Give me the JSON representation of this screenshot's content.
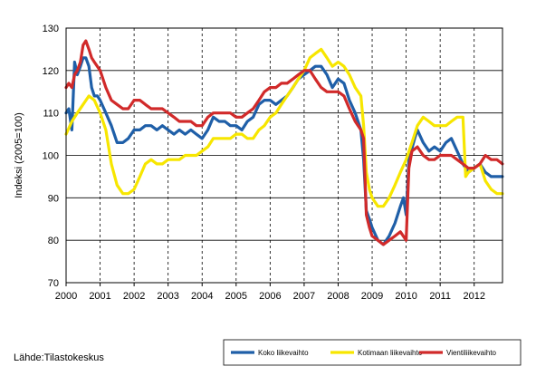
{
  "source": "Lähde:Tilastokeskus",
  "chart_data": {
    "type": "line",
    "ylabel": "Indeksi (2005=100)",
    "xlabel": "",
    "ylim": [
      70,
      130
    ],
    "xlim": [
      2000.0,
      2012.833
    ],
    "yticks": [
      70,
      80,
      90,
      100,
      110,
      120,
      130
    ],
    "xticks": [
      "2000",
      "2001",
      "2002",
      "2003",
      "2004",
      "2005",
      "2006",
      "2007",
      "2008",
      "2009",
      "2010",
      "2011",
      "2012"
    ],
    "grid": {
      "horizontal": "solid",
      "vertical": "dashed"
    },
    "legend_position": "bottom-right",
    "series": [
      {
        "name": "Koko liikevaihto",
        "color": "#1f5fa8",
        "points": [
          [
            2000.0,
            110
          ],
          [
            2000.08,
            111
          ],
          [
            2000.17,
            106
          ],
          [
            2000.25,
            122
          ],
          [
            2000.33,
            119
          ],
          [
            2000.42,
            121
          ],
          [
            2000.5,
            123
          ],
          [
            2000.58,
            123
          ],
          [
            2000.67,
            121
          ],
          [
            2000.75,
            116
          ],
          [
            2000.83,
            114
          ],
          [
            2000.92,
            114
          ],
          [
            2001.0,
            113
          ],
          [
            2001.17,
            110
          ],
          [
            2001.33,
            107
          ],
          [
            2001.5,
            103
          ],
          [
            2001.67,
            103
          ],
          [
            2001.83,
            104
          ],
          [
            2002.0,
            106
          ],
          [
            2002.17,
            106
          ],
          [
            2002.33,
            107
          ],
          [
            2002.5,
            107
          ],
          [
            2002.67,
            106
          ],
          [
            2002.83,
            107
          ],
          [
            2003.0,
            106
          ],
          [
            2003.17,
            105
          ],
          [
            2003.33,
            106
          ],
          [
            2003.5,
            105
          ],
          [
            2003.67,
            106
          ],
          [
            2003.83,
            105
          ],
          [
            2004.0,
            104
          ],
          [
            2004.17,
            106
          ],
          [
            2004.33,
            109
          ],
          [
            2004.5,
            108
          ],
          [
            2004.67,
            108
          ],
          [
            2004.83,
            107
          ],
          [
            2005.0,
            107
          ],
          [
            2005.17,
            106
          ],
          [
            2005.33,
            108
          ],
          [
            2005.5,
            109
          ],
          [
            2005.67,
            112
          ],
          [
            2005.83,
            113
          ],
          [
            2006.0,
            113
          ],
          [
            2006.17,
            112
          ],
          [
            2006.33,
            113
          ],
          [
            2006.5,
            114
          ],
          [
            2006.67,
            116
          ],
          [
            2006.83,
            118
          ],
          [
            2007.0,
            119
          ],
          [
            2007.17,
            120
          ],
          [
            2007.33,
            121
          ],
          [
            2007.5,
            121
          ],
          [
            2007.67,
            119
          ],
          [
            2007.83,
            116
          ],
          [
            2008.0,
            118
          ],
          [
            2008.17,
            117
          ],
          [
            2008.33,
            113
          ],
          [
            2008.5,
            110
          ],
          [
            2008.67,
            106
          ],
          [
            2008.75,
            99
          ],
          [
            2008.83,
            87
          ],
          [
            2008.92,
            85
          ],
          [
            2009.0,
            83
          ],
          [
            2009.17,
            80
          ],
          [
            2009.33,
            79
          ],
          [
            2009.5,
            81
          ],
          [
            2009.67,
            84
          ],
          [
            2009.83,
            88
          ],
          [
            2009.92,
            90
          ],
          [
            2010.0,
            86
          ],
          [
            2010.08,
            99
          ],
          [
            2010.25,
            104
          ],
          [
            2010.33,
            106
          ],
          [
            2010.5,
            103
          ],
          [
            2010.67,
            101
          ],
          [
            2010.83,
            102
          ],
          [
            2011.0,
            101
          ],
          [
            2011.17,
            103
          ],
          [
            2011.33,
            104
          ],
          [
            2011.5,
            101
          ],
          [
            2011.67,
            98
          ],
          [
            2011.83,
            96
          ],
          [
            2012.0,
            97
          ],
          [
            2012.17,
            98
          ],
          [
            2012.33,
            96
          ],
          [
            2012.5,
            95
          ],
          [
            2012.67,
            95
          ],
          [
            2012.83,
            95
          ]
        ]
      },
      {
        "name": "Kotimaan liikevaihto",
        "color": "#f7e600",
        "points": [
          [
            2000.0,
            105
          ],
          [
            2000.17,
            108
          ],
          [
            2000.33,
            110
          ],
          [
            2000.5,
            112
          ],
          [
            2000.67,
            114
          ],
          [
            2000.83,
            113
          ],
          [
            2001.0,
            110
          ],
          [
            2001.17,
            106
          ],
          [
            2001.33,
            98
          ],
          [
            2001.5,
            93
          ],
          [
            2001.67,
            91
          ],
          [
            2001.83,
            91
          ],
          [
            2002.0,
            92
          ],
          [
            2002.17,
            95
          ],
          [
            2002.33,
            98
          ],
          [
            2002.5,
            99
          ],
          [
            2002.67,
            98
          ],
          [
            2002.83,
            98
          ],
          [
            2003.0,
            99
          ],
          [
            2003.17,
            99
          ],
          [
            2003.33,
            99
          ],
          [
            2003.5,
            100
          ],
          [
            2003.67,
            100
          ],
          [
            2003.83,
            100
          ],
          [
            2004.0,
            101
          ],
          [
            2004.17,
            102
          ],
          [
            2004.33,
            104
          ],
          [
            2004.5,
            104
          ],
          [
            2004.67,
            104
          ],
          [
            2004.83,
            104
          ],
          [
            2005.0,
            105
          ],
          [
            2005.17,
            105
          ],
          [
            2005.33,
            104
          ],
          [
            2005.5,
            104
          ],
          [
            2005.67,
            106
          ],
          [
            2005.83,
            107
          ],
          [
            2006.0,
            109
          ],
          [
            2006.17,
            110
          ],
          [
            2006.33,
            112
          ],
          [
            2006.5,
            114
          ],
          [
            2006.67,
            116
          ],
          [
            2006.83,
            118
          ],
          [
            2007.0,
            120
          ],
          [
            2007.17,
            123
          ],
          [
            2007.33,
            124
          ],
          [
            2007.5,
            125
          ],
          [
            2007.67,
            123
          ],
          [
            2007.83,
            121
          ],
          [
            2008.0,
            122
          ],
          [
            2008.17,
            121
          ],
          [
            2008.33,
            119
          ],
          [
            2008.5,
            116
          ],
          [
            2008.67,
            114
          ],
          [
            2008.75,
            107
          ],
          [
            2008.83,
            96
          ],
          [
            2008.92,
            92
          ],
          [
            2009.0,
            90
          ],
          [
            2009.17,
            88
          ],
          [
            2009.33,
            88
          ],
          [
            2009.5,
            90
          ],
          [
            2009.67,
            93
          ],
          [
            2009.83,
            96
          ],
          [
            2010.0,
            99
          ],
          [
            2010.17,
            103
          ],
          [
            2010.33,
            107
          ],
          [
            2010.5,
            109
          ],
          [
            2010.67,
            108
          ],
          [
            2010.83,
            107
          ],
          [
            2011.0,
            107
          ],
          [
            2011.17,
            107
          ],
          [
            2011.33,
            108
          ],
          [
            2011.5,
            109
          ],
          [
            2011.67,
            109
          ],
          [
            2011.75,
            95
          ],
          [
            2011.83,
            96
          ],
          [
            2012.0,
            97
          ],
          [
            2012.17,
            98
          ],
          [
            2012.33,
            94
          ],
          [
            2012.5,
            92
          ],
          [
            2012.67,
            91
          ],
          [
            2012.83,
            91
          ]
        ]
      },
      {
        "name": "Vientiliikevaihto",
        "color": "#d12a2a",
        "points": [
          [
            2000.0,
            116
          ],
          [
            2000.08,
            117
          ],
          [
            2000.17,
            116
          ],
          [
            2000.25,
            119
          ],
          [
            2000.33,
            120
          ],
          [
            2000.42,
            122
          ],
          [
            2000.5,
            126
          ],
          [
            2000.58,
            127
          ],
          [
            2000.67,
            125
          ],
          [
            2000.75,
            123
          ],
          [
            2000.83,
            122
          ],
          [
            2001.0,
            120
          ],
          [
            2001.17,
            116
          ],
          [
            2001.33,
            113
          ],
          [
            2001.5,
            112
          ],
          [
            2001.67,
            111
          ],
          [
            2001.83,
            111
          ],
          [
            2002.0,
            113
          ],
          [
            2002.17,
            113
          ],
          [
            2002.33,
            112
          ],
          [
            2002.5,
            111
          ],
          [
            2002.67,
            111
          ],
          [
            2002.83,
            111
          ],
          [
            2003.0,
            110
          ],
          [
            2003.17,
            109
          ],
          [
            2003.33,
            108
          ],
          [
            2003.5,
            108
          ],
          [
            2003.67,
            108
          ],
          [
            2003.83,
            107
          ],
          [
            2004.0,
            107
          ],
          [
            2004.17,
            109
          ],
          [
            2004.33,
            110
          ],
          [
            2004.5,
            110
          ],
          [
            2004.67,
            110
          ],
          [
            2004.83,
            110
          ],
          [
            2005.0,
            109
          ],
          [
            2005.17,
            109
          ],
          [
            2005.33,
            110
          ],
          [
            2005.5,
            111
          ],
          [
            2005.67,
            113
          ],
          [
            2005.83,
            115
          ],
          [
            2006.0,
            116
          ],
          [
            2006.17,
            116
          ],
          [
            2006.33,
            117
          ],
          [
            2006.5,
            117
          ],
          [
            2006.67,
            118
          ],
          [
            2006.83,
            119
          ],
          [
            2007.0,
            120
          ],
          [
            2007.17,
            120
          ],
          [
            2007.33,
            118
          ],
          [
            2007.5,
            116
          ],
          [
            2007.67,
            115
          ],
          [
            2007.83,
            115
          ],
          [
            2008.0,
            115
          ],
          [
            2008.17,
            114
          ],
          [
            2008.33,
            111
          ],
          [
            2008.5,
            108
          ],
          [
            2008.67,
            106
          ],
          [
            2008.75,
            104
          ],
          [
            2008.83,
            86
          ],
          [
            2008.92,
            83
          ],
          [
            2009.0,
            81
          ],
          [
            2009.17,
            80
          ],
          [
            2009.33,
            79
          ],
          [
            2009.5,
            80
          ],
          [
            2009.67,
            81
          ],
          [
            2009.83,
            82
          ],
          [
            2010.0,
            80
          ],
          [
            2010.08,
            97
          ],
          [
            2010.17,
            101
          ],
          [
            2010.33,
            102
          ],
          [
            2010.5,
            100
          ],
          [
            2010.67,
            99
          ],
          [
            2010.83,
            99
          ],
          [
            2011.0,
            100
          ],
          [
            2011.17,
            100
          ],
          [
            2011.33,
            100
          ],
          [
            2011.5,
            99
          ],
          [
            2011.67,
            98
          ],
          [
            2011.83,
            97
          ],
          [
            2012.0,
            97
          ],
          [
            2012.17,
            98
          ],
          [
            2012.33,
            100
          ],
          [
            2012.5,
            99
          ],
          [
            2012.67,
            99
          ],
          [
            2012.83,
            98
          ]
        ]
      }
    ]
  }
}
